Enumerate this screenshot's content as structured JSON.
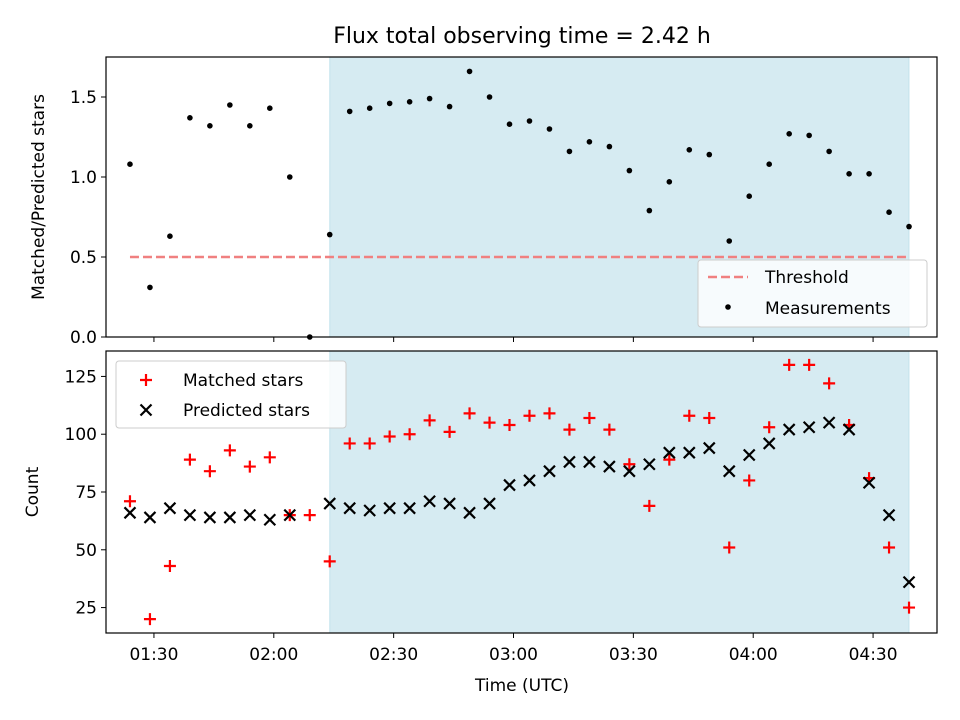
{
  "chart_data": [
    {
      "type": "scatter",
      "title": "Flux total observing time = 2.42 h",
      "xlabel": "",
      "ylabel": "Matched/Predicted stars",
      "ylim": [
        0,
        1.75
      ],
      "yticks": [
        0.0,
        0.5,
        1.0,
        1.5
      ],
      "ytick_labels": [
        "0.0",
        "0.5",
        "1.0",
        "1.5"
      ],
      "xlim": [
        "01:18",
        "04:46"
      ],
      "shaded_span": {
        "start": "02:14",
        "end": "04:39",
        "color": "#add8e6"
      },
      "legend_position": "lower-right",
      "threshold": {
        "name": "Threshold",
        "value": 0.5,
        "x_start": "01:24",
        "x_end": "04:39",
        "color": "#f08080"
      },
      "series": [
        {
          "name": "Measurements",
          "color": "#000000",
          "x": [
            "01:24",
            "01:29",
            "01:34",
            "01:39",
            "01:44",
            "01:49",
            "01:54",
            "01:59",
            "02:04",
            "02:09",
            "02:14",
            "02:19",
            "02:24",
            "02:29",
            "02:34",
            "02:39",
            "02:44",
            "02:49",
            "02:54",
            "02:59",
            "03:04",
            "03:09",
            "03:14",
            "03:19",
            "03:24",
            "03:29",
            "03:34",
            "03:39",
            "03:44",
            "03:49",
            "03:54",
            "03:59",
            "04:04",
            "04:09",
            "04:14",
            "04:19",
            "04:24",
            "04:29",
            "04:34",
            "04:39"
          ],
          "y": [
            1.08,
            0.31,
            0.63,
            1.37,
            1.32,
            1.45,
            1.32,
            1.43,
            1.0,
            0.0,
            0.64,
            1.41,
            1.43,
            1.46,
            1.47,
            1.49,
            1.44,
            1.66,
            1.5,
            1.33,
            1.35,
            1.3,
            1.16,
            1.22,
            1.19,
            1.04,
            0.79,
            0.97,
            1.17,
            1.14,
            0.6,
            0.88,
            1.08,
            1.27,
            1.26,
            1.16,
            1.02,
            1.02,
            0.78,
            0.69
          ]
        }
      ]
    },
    {
      "type": "scatter",
      "title": "",
      "xlabel": "Time (UTC)",
      "ylabel": "Count",
      "ylim": [
        14,
        136
      ],
      "yticks": [
        25,
        50,
        75,
        100,
        125
      ],
      "ytick_labels": [
        "25",
        "50",
        "75",
        "100",
        "125"
      ],
      "xlim": [
        "01:18",
        "04:46"
      ],
      "xticks": [
        "01:30",
        "02:00",
        "02:30",
        "03:00",
        "03:30",
        "04:00",
        "04:30"
      ],
      "xtick_labels": [
        "01:30",
        "02:00",
        "02:30",
        "03:00",
        "03:30",
        "04:00",
        "04:30"
      ],
      "shaded_span": {
        "start": "02:14",
        "end": "04:39",
        "color": "#add8e6"
      },
      "legend_position": "upper-left",
      "series": [
        {
          "name": "Matched stars",
          "marker": "plus",
          "color": "#ff0000",
          "x": [
            "01:24",
            "01:29",
            "01:34",
            "01:39",
            "01:44",
            "01:49",
            "01:54",
            "01:59",
            "02:04",
            "02:09",
            "02:14",
            "02:19",
            "02:24",
            "02:29",
            "02:34",
            "02:39",
            "02:44",
            "02:49",
            "02:54",
            "02:59",
            "03:04",
            "03:09",
            "03:14",
            "03:19",
            "03:24",
            "03:29",
            "03:34",
            "03:39",
            "03:44",
            "03:49",
            "03:54",
            "03:59",
            "04:04",
            "04:09",
            "04:14",
            "04:19",
            "04:24",
            "04:29",
            "04:34",
            "04:39"
          ],
          "y": [
            71,
            20,
            43,
            89,
            84,
            93,
            86,
            90,
            65,
            65,
            45,
            96,
            96,
            99,
            100,
            106,
            101,
            109,
            105,
            104,
            108,
            109,
            102,
            107,
            102,
            87,
            69,
            89,
            108,
            107,
            51,
            80,
            103,
            130,
            130,
            122,
            104,
            81,
            51,
            25
          ]
        },
        {
          "name": "Predicted stars",
          "marker": "x",
          "color": "#000000",
          "x": [
            "01:24",
            "01:29",
            "01:34",
            "01:39",
            "01:44",
            "01:49",
            "01:54",
            "01:59",
            "02:04",
            "02:14",
            "02:19",
            "02:24",
            "02:29",
            "02:34",
            "02:39",
            "02:44",
            "02:49",
            "02:54",
            "02:59",
            "03:04",
            "03:09",
            "03:14",
            "03:19",
            "03:24",
            "03:29",
            "03:34",
            "03:39",
            "03:44",
            "03:49",
            "03:54",
            "03:59",
            "04:04",
            "04:09",
            "04:14",
            "04:19",
            "04:24",
            "04:29",
            "04:34",
            "04:39"
          ],
          "y": [
            66,
            64,
            68,
            65,
            64,
            64,
            65,
            63,
            65,
            70,
            68,
            67,
            68,
            68,
            71,
            70,
            66,
            70,
            78,
            80,
            84,
            88,
            88,
            86,
            84,
            87,
            92,
            92,
            94,
            84,
            91,
            96,
            102,
            103,
            105,
            102,
            79,
            65,
            36
          ]
        }
      ]
    }
  ]
}
